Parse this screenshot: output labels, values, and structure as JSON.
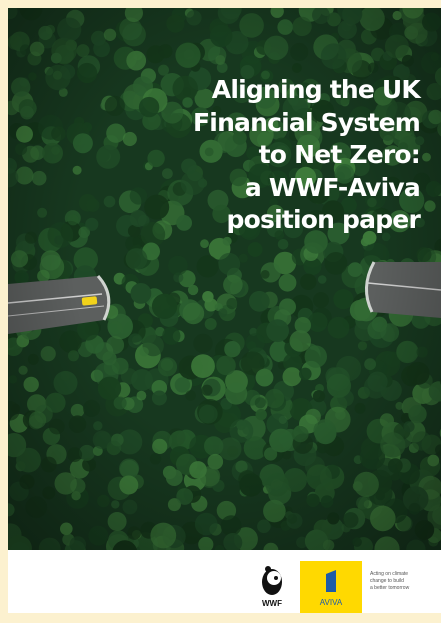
{
  "cover": {
    "title_lines": [
      "Aligning the UK",
      "Financial System",
      "to Net Zero:",
      "a WWF-Aviva",
      "position paper"
    ]
  },
  "logos": {
    "wwf": "WWF",
    "aviva": "AVIVA",
    "tagline_lines": [
      "Acting on climate",
      "change to build",
      "a better tomorrow"
    ]
  }
}
